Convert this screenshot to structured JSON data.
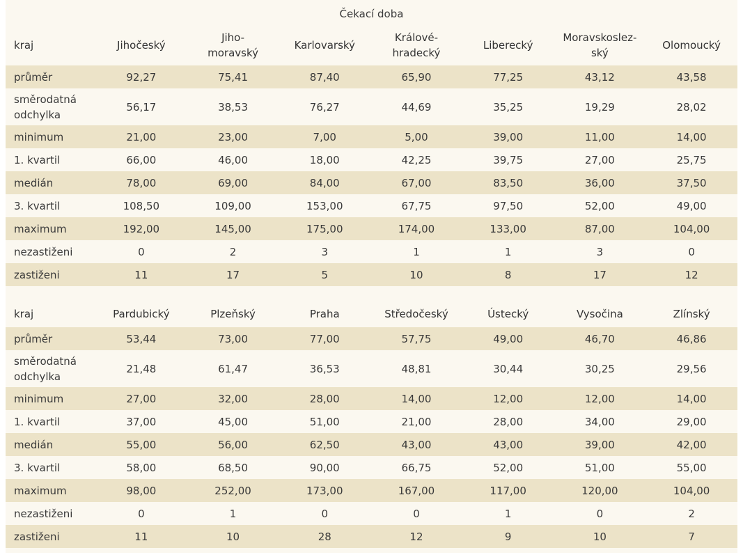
{
  "caption": "Čekací doba",
  "row_labels": [
    "průměr",
    "směrodatná\nodchylka",
    "minimum",
    "1. kvartil",
    "medián",
    "3. kvartil",
    "maximum",
    "nezastiženi",
    "zastiženi"
  ],
  "table1": {
    "header_label": "kraj",
    "regions": [
      "Jihočeský",
      "Jiho-\nmoravský",
      "Karlovarský",
      "Králové-\nhradecký",
      "Liberecký",
      "Moravskoslez-\nský",
      "Olomoucký"
    ],
    "rows": [
      [
        "92,27",
        "75,41",
        "87,40",
        "65,90",
        "77,25",
        "43,12",
        "43,58"
      ],
      [
        "56,17",
        "38,53",
        "76,27",
        "44,69",
        "35,25",
        "19,29",
        "28,02"
      ],
      [
        "21,00",
        "23,00",
        "7,00",
        "5,00",
        "39,00",
        "11,00",
        "14,00"
      ],
      [
        "66,00",
        "46,00",
        "18,00",
        "42,25",
        "39,75",
        "27,00",
        "25,75"
      ],
      [
        "78,00",
        "69,00",
        "84,00",
        "67,00",
        "83,50",
        "36,00",
        "37,50"
      ],
      [
        "108,50",
        "109,00",
        "153,00",
        "67,75",
        "97,50",
        "52,00",
        "49,00"
      ],
      [
        "192,00",
        "145,00",
        "175,00",
        "174,00",
        "133,00",
        "87,00",
        "104,00"
      ],
      [
        "0",
        "2",
        "3",
        "1",
        "1",
        "3",
        "0"
      ],
      [
        "11",
        "17",
        "5",
        "10",
        "8",
        "17",
        "12"
      ]
    ]
  },
  "table2": {
    "header_label": "kraj",
    "regions": [
      "Pardubický",
      "Plzeňský",
      "Praha",
      "Středočeský",
      "Ústecký",
      "Vysočina",
      "Zlínský"
    ],
    "rows": [
      [
        "53,44",
        "73,00",
        "77,00",
        "57,75",
        "49,00",
        "46,70",
        "46,86"
      ],
      [
        "21,48",
        "61,47",
        "36,53",
        "48,81",
        "30,44",
        "30,25",
        "29,56"
      ],
      [
        "27,00",
        "32,00",
        "28,00",
        "14,00",
        "12,00",
        "12,00",
        "14,00"
      ],
      [
        "37,00",
        "45,00",
        "51,00",
        "21,00",
        "28,00",
        "34,00",
        "29,00"
      ],
      [
        "55,00",
        "56,00",
        "62,50",
        "43,00",
        "43,00",
        "39,00",
        "42,00"
      ],
      [
        "58,00",
        "68,50",
        "90,00",
        "66,75",
        "52,00",
        "51,00",
        "55,00"
      ],
      [
        "98,00",
        "252,00",
        "173,00",
        "167,00",
        "117,00",
        "120,00",
        "104,00"
      ],
      [
        "0",
        "1",
        "0",
        "0",
        "1",
        "0",
        "2"
      ],
      [
        "11",
        "10",
        "28",
        "12",
        "9",
        "10",
        "7"
      ]
    ]
  },
  "colors": {
    "band": "#ece3c8",
    "background": "#fbf8f0",
    "text": "#3a3a3a"
  }
}
